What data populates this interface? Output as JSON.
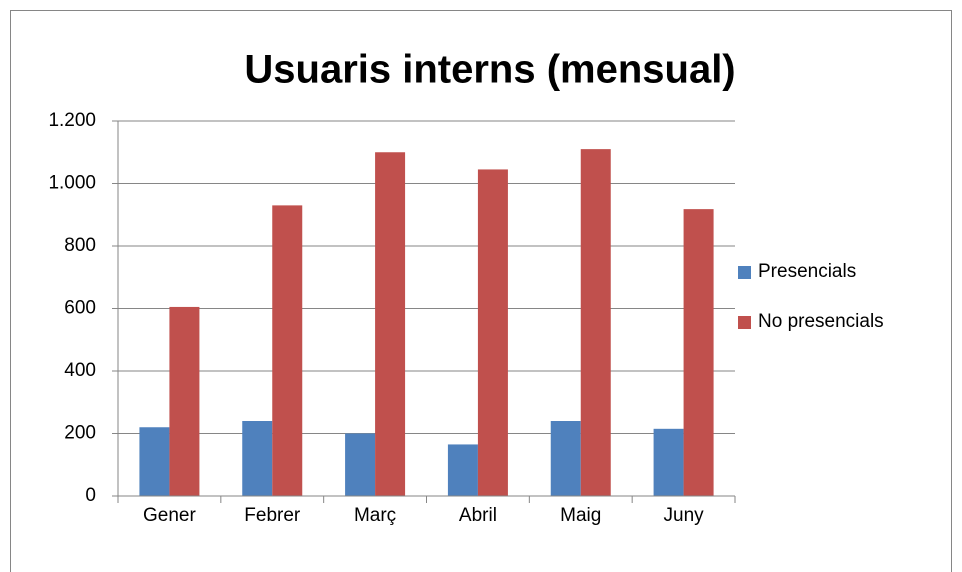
{
  "chart_data": {
    "type": "bar",
    "title": "Usuaris interns (mensual)",
    "categories": [
      "Gener",
      "Febrer",
      "Març",
      "Abril",
      "Maig",
      "Juny"
    ],
    "series": [
      {
        "name": "Presencials",
        "color": "#4f81bd",
        "values": [
          220,
          240,
          200,
          165,
          240,
          215
        ]
      },
      {
        "name": "No presencials",
        "color": "#c0504d",
        "values": [
          605,
          930,
          1100,
          1045,
          1110,
          918
        ]
      }
    ],
    "ylim": [
      0,
      1200
    ],
    "yticks": [
      0,
      200,
      400,
      600,
      800,
      {
        "value": 1000,
        "label": "1.000"
      },
      {
        "value": 1200,
        "label": "1.200"
      }
    ],
    "grid": true,
    "legend": "right"
  }
}
